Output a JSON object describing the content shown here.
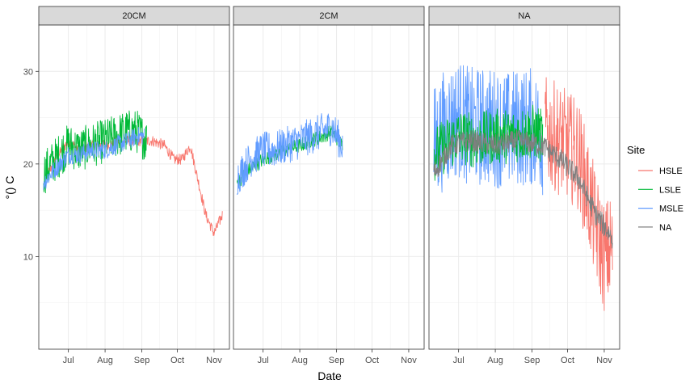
{
  "chart_data": {
    "type": "line",
    "facet_by": "depth",
    "panels": [
      "20CM",
      "2CM",
      "NA"
    ],
    "xlabel": "Date",
    "ylabel": "°() C",
    "x_ticks": [
      "Jul",
      "Aug",
      "Sep",
      "Oct",
      "Nov"
    ],
    "x_tick_dates": [
      "2023-07-01",
      "2023-08-01",
      "2023-09-01",
      "2023-10-01",
      "2023-11-01"
    ],
    "xlim": [
      "2023-06-06",
      "2023-11-14"
    ],
    "y_ticks": [
      10,
      20,
      30
    ],
    "ylim": [
      0,
      35
    ],
    "grid": true,
    "theme": "bw",
    "legend": {
      "title": "Site",
      "position": "right",
      "entries": [
        "HSLE",
        "LSLE",
        "MSLE",
        "NA"
      ]
    },
    "colors": {
      "HSLE": "#F8766D",
      "LSLE": "#00BA38",
      "MSLE": "#619CFF",
      "NA": "#7F7F7F"
    },
    "series": [
      {
        "panel": "20CM",
        "name": "HSLE",
        "x": [
          "2023-06-12",
          "2023-06-20",
          "2023-07-01",
          "2023-07-10",
          "2023-07-20",
          "2023-08-01",
          "2023-08-10",
          "2023-08-20",
          "2023-09-01",
          "2023-09-10",
          "2023-09-20",
          "2023-09-28",
          "2023-10-05",
          "2023-10-12",
          "2023-10-18",
          "2023-10-25",
          "2023-11-01",
          "2023-11-08"
        ],
        "y": [
          18.5,
          20.5,
          22.5,
          21.5,
          22,
          22,
          22.5,
          22.5,
          22.5,
          22.5,
          22,
          20.5,
          20.5,
          22,
          18.5,
          14.5,
          12.5,
          14.5
        ],
        "noise": 0.6
      },
      {
        "panel": "20CM",
        "name": "LSLE",
        "x": [
          "2023-06-10",
          "2023-06-20",
          "2023-07-01",
          "2023-07-10",
          "2023-07-20",
          "2023-08-01",
          "2023-08-10",
          "2023-08-20",
          "2023-08-28",
          "2023-09-05"
        ],
        "y": [
          19,
          20.5,
          22,
          21.5,
          22,
          22.5,
          23,
          23.5,
          23.5,
          22.5
        ],
        "noise": 2.4
      },
      {
        "panel": "20CM",
        "name": "MSLE",
        "x": [
          "2023-06-10",
          "2023-06-20",
          "2023-07-01",
          "2023-07-10",
          "2023-07-20",
          "2023-08-01",
          "2023-08-10",
          "2023-08-20",
          "2023-08-28",
          "2023-09-03"
        ],
        "y": [
          18,
          19.5,
          21,
          21,
          21.5,
          21.5,
          22,
          22.5,
          23,
          23
        ],
        "noise": 1.0
      },
      {
        "panel": "2CM",
        "name": "LSLE",
        "x": [
          "2023-06-09",
          "2023-06-20",
          "2023-07-01",
          "2023-07-10",
          "2023-07-20",
          "2023-08-01",
          "2023-08-10",
          "2023-08-20",
          "2023-08-28",
          "2023-09-06"
        ],
        "y": [
          18,
          19.5,
          20.5,
          21,
          21.5,
          22,
          22.5,
          23,
          23.5,
          22
        ],
        "noise": 0.8
      },
      {
        "panel": "2CM",
        "name": "MSLE",
        "x": [
          "2023-06-09",
          "2023-06-20",
          "2023-07-01",
          "2023-07-10",
          "2023-07-20",
          "2023-08-01",
          "2023-08-10",
          "2023-08-20",
          "2023-08-28",
          "2023-09-06"
        ],
        "y": [
          18.5,
          20.5,
          21.5,
          21.5,
          22,
          22.5,
          23,
          23.5,
          24,
          22
        ],
        "noise": 2.0
      },
      {
        "panel": "NA",
        "name": "MSLE",
        "x": [
          "2023-06-10",
          "2023-06-20",
          "2023-07-01",
          "2023-07-10",
          "2023-07-20",
          "2023-08-01",
          "2023-08-10",
          "2023-08-20",
          "2023-09-01",
          "2023-09-10"
        ],
        "y": [
          22,
          24,
          25,
          24,
          24,
          24,
          23.5,
          24,
          24,
          23
        ],
        "noise": 6.5
      },
      {
        "panel": "NA",
        "name": "LSLE",
        "x": [
          "2023-06-10",
          "2023-06-20",
          "2023-07-01",
          "2023-07-15",
          "2023-08-01",
          "2023-08-15",
          "2023-09-01",
          "2023-09-10"
        ],
        "y": [
          21,
          22,
          23,
          22.5,
          23,
          23,
          23.5,
          23
        ],
        "noise": 3.0
      },
      {
        "panel": "NA",
        "name": "HSLE",
        "x": [
          "2023-09-12",
          "2023-09-20",
          "2023-10-01",
          "2023-10-10",
          "2023-10-18",
          "2023-10-25",
          "2023-11-01",
          "2023-11-08"
        ],
        "y": [
          23.5,
          23,
          22,
          21,
          17,
          13,
          10,
          11
        ],
        "noise": 6.0
      },
      {
        "panel": "NA",
        "name": "NA",
        "x": [
          "2023-06-10",
          "2023-06-25",
          "2023-07-10",
          "2023-08-01",
          "2023-08-20",
          "2023-09-10",
          "2023-09-25",
          "2023-10-10",
          "2023-10-25",
          "2023-11-08"
        ],
        "y": [
          19,
          22,
          22.5,
          22,
          22.5,
          22,
          20.5,
          18.5,
          14.5,
          12
        ],
        "noise": 1.2
      }
    ]
  }
}
